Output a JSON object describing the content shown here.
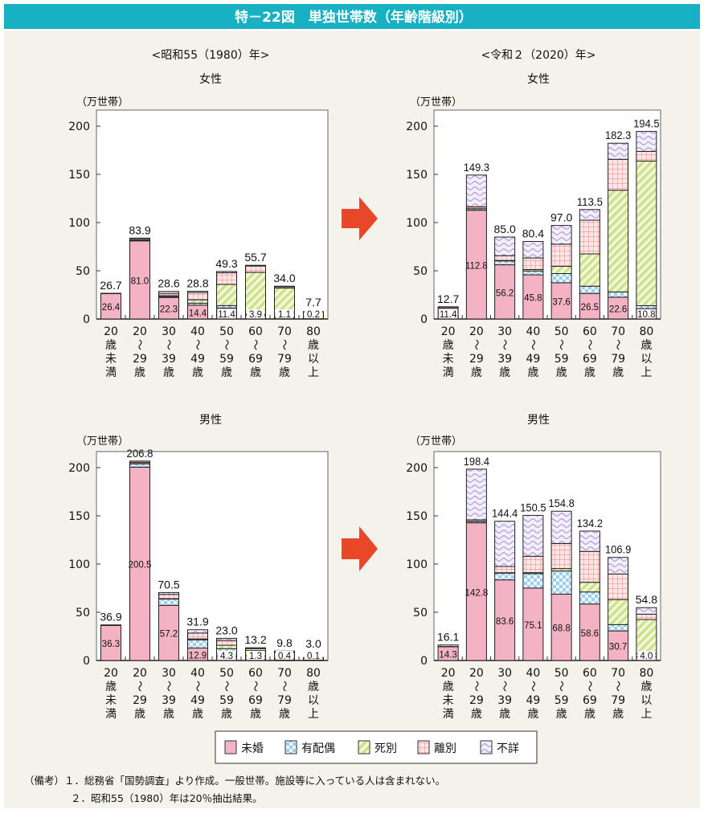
{
  "title": "特－22図　単独世帯数（年齢階級別）",
  "colors": {
    "title_bar": "#17b1c3",
    "background": "#f4f2eb",
    "arrow": "#e8472a",
    "未婚": "#f4b3c5",
    "有配偶": "#a9d6ef",
    "死別": "#d6e79a",
    "離別": "#f5a6a6",
    "不詳": "#c9b8e6"
  },
  "headers": {
    "left": "<昭和55（1980）年>",
    "right": "<令和２（2020）年>",
    "female": "女性",
    "male": "男性"
  },
  "legend": [
    {
      "label": "未婚",
      "icon": "solid-pink"
    },
    {
      "label": "有配偶",
      "icon": "checker-blue"
    },
    {
      "label": "死別",
      "icon": "stripe-green"
    },
    {
      "label": "離別",
      "icon": "grid-pink"
    },
    {
      "label": "不詳",
      "icon": "wave-lavender"
    }
  ],
  "notes": [
    "（備考）１．総務省「国勢調査」より作成。一般世帯。施設等に入っている人は含まれない。",
    "２．昭和55（1980）年は20％抽出結果。"
  ],
  "chart_data": [
    {
      "type": "bar",
      "stacked": true,
      "period": "<昭和55（1980）年>",
      "sex": "女性",
      "ylabel": "（万世帯）",
      "ylim": [
        0,
        200
      ],
      "yticks": [
        0,
        50,
        100,
        150,
        200
      ],
      "grid": false,
      "categories": [
        [
          "20",
          "歳",
          "未",
          "満"
        ],
        [
          "20",
          "～",
          "29",
          "歳"
        ],
        [
          "30",
          "～",
          "39",
          "歳"
        ],
        [
          "40",
          "～",
          "49",
          "歳"
        ],
        [
          "50",
          "～",
          "59",
          "歳"
        ],
        [
          "60",
          "～",
          "69",
          "歳"
        ],
        [
          "70",
          "～",
          "79",
          "歳"
        ],
        [
          "80",
          "歳",
          "以",
          "上"
        ]
      ],
      "totals": [
        26.7,
        83.9,
        28.6,
        28.8,
        49.3,
        55.7,
        34.0,
        7.7
      ],
      "series": [
        {
          "name": "未婚",
          "values": [
            26.4,
            81.0,
            22.3,
            14.4,
            11.4,
            3.9,
            1.1,
            0.2
          ]
        },
        {
          "name": "有配偶",
          "values": [
            0.1,
            0.9,
            1.0,
            2.0,
            2.5,
            1.0,
            0.5,
            0.1
          ]
        },
        {
          "name": "死別",
          "values": [
            0.0,
            0.1,
            0.8,
            3.5,
            22.0,
            43.5,
            30.5,
            7.0
          ]
        },
        {
          "name": "離別",
          "values": [
            0.1,
            1.3,
            2.5,
            7.5,
            12.0,
            6.5,
            1.3,
            0.2
          ]
        },
        {
          "name": "不詳",
          "values": [
            0.1,
            0.6,
            2.0,
            1.4,
            1.4,
            0.8,
            0.6,
            0.2
          ]
        }
      ]
    },
    {
      "type": "bar",
      "stacked": true,
      "period": "<令和２（2020）年>",
      "sex": "女性",
      "ylabel": "（万世帯）",
      "ylim": [
        0,
        200
      ],
      "yticks": [
        0,
        50,
        100,
        150,
        200
      ],
      "grid": false,
      "categories": [
        [
          "20",
          "歳",
          "未",
          "満"
        ],
        [
          "20",
          "～",
          "29",
          "歳"
        ],
        [
          "30",
          "～",
          "39",
          "歳"
        ],
        [
          "40",
          "～",
          "49",
          "歳"
        ],
        [
          "50",
          "～",
          "59",
          "歳"
        ],
        [
          "60",
          "～",
          "69",
          "歳"
        ],
        [
          "70",
          "～",
          "79",
          "歳"
        ],
        [
          "80",
          "歳",
          "以",
          "上"
        ]
      ],
      "totals": [
        12.7,
        149.3,
        85.0,
        80.4,
        97.0,
        113.5,
        182.3,
        194.5
      ],
      "series": [
        {
          "name": "未婚",
          "values": [
            11.4,
            112.8,
            56.2,
            45.8,
            37.6,
            26.5,
            22.6,
            10.8
          ]
        },
        {
          "name": "有配偶",
          "values": [
            0.1,
            1.5,
            4.0,
            4.0,
            9.5,
            7.5,
            5.5,
            3.0
          ]
        },
        {
          "name": "死別",
          "values": [
            0.0,
            0.1,
            0.5,
            1.5,
            7.5,
            33.5,
            105.5,
            150.0
          ]
        },
        {
          "name": "離別",
          "values": [
            0.1,
            2.0,
            5.0,
            12.0,
            23.0,
            35.0,
            32.0,
            10.0
          ]
        },
        {
          "name": "不詳",
          "values": [
            1.1,
            32.9,
            19.3,
            17.1,
            19.4,
            11.0,
            16.7,
            20.7
          ]
        }
      ]
    },
    {
      "type": "bar",
      "stacked": true,
      "period": "<昭和55（1980）年>",
      "sex": "男性",
      "ylabel": "（万世帯）",
      "ylim": [
        0,
        200
      ],
      "yticks": [
        0,
        50,
        100,
        150,
        200
      ],
      "grid": false,
      "categories": [
        [
          "20",
          "歳",
          "未",
          "満"
        ],
        [
          "20",
          "～",
          "29",
          "歳"
        ],
        [
          "30",
          "～",
          "39",
          "歳"
        ],
        [
          "40",
          "～",
          "49",
          "歳"
        ],
        [
          "50",
          "～",
          "59",
          "歳"
        ],
        [
          "60",
          "～",
          "69",
          "歳"
        ],
        [
          "70",
          "～",
          "79",
          "歳"
        ],
        [
          "80",
          "歳",
          "以",
          "上"
        ]
      ],
      "totals": [
        36.9,
        206.8,
        70.5,
        31.9,
        23.0,
        13.2,
        9.8,
        3.0
      ],
      "series": [
        {
          "name": "未婚",
          "values": [
            36.3,
            200.5,
            57.2,
            12.9,
            4.3,
            1.3,
            0.4,
            0.1
          ]
        },
        {
          "name": "有配偶",
          "values": [
            0.2,
            3.5,
            6.5,
            8.5,
            8.0,
            3.5,
            1.5,
            0.3
          ]
        },
        {
          "name": "死別",
          "values": [
            0.0,
            0.1,
            0.3,
            1.0,
            3.5,
            5.5,
            6.5,
            2.4
          ]
        },
        {
          "name": "離別",
          "values": [
            0.2,
            1.5,
            4.5,
            6.0,
            5.0,
            2.0,
            0.7,
            0.1
          ]
        },
        {
          "name": "不詳",
          "values": [
            0.2,
            1.2,
            2.0,
            3.5,
            2.2,
            0.9,
            0.7,
            0.1
          ]
        }
      ]
    },
    {
      "type": "bar",
      "stacked": true,
      "period": "<令和２（2020）年>",
      "sex": "男性",
      "ylabel": "（万世帯）",
      "ylim": [
        0,
        200
      ],
      "yticks": [
        0,
        50,
        100,
        150,
        200
      ],
      "grid": false,
      "categories": [
        [
          "20",
          "歳",
          "未",
          "満"
        ],
        [
          "20",
          "～",
          "29",
          "歳"
        ],
        [
          "30",
          "～",
          "39",
          "歳"
        ],
        [
          "40",
          "～",
          "49",
          "歳"
        ],
        [
          "50",
          "～",
          "59",
          "歳"
        ],
        [
          "60",
          "～",
          "69",
          "歳"
        ],
        [
          "70",
          "～",
          "79",
          "歳"
        ],
        [
          "80",
          "歳",
          "以",
          "上"
        ]
      ],
      "totals": [
        16.1,
        198.4,
        144.4,
        150.5,
        154.8,
        134.2,
        106.9,
        54.8
      ],
      "series": [
        {
          "name": "未婚",
          "values": [
            14.3,
            142.8,
            83.6,
            75.1,
            68.8,
            58.6,
            30.7,
            4.0
          ]
        },
        {
          "name": "有配偶",
          "values": [
            0.1,
            1.5,
            7.0,
            15.0,
            24.0,
            12.5,
            6.5,
            3.0
          ]
        },
        {
          "name": "死別",
          "values": [
            0.0,
            0.1,
            0.4,
            1.0,
            2.5,
            10.0,
            26.0,
            35.5
          ]
        },
        {
          "name": "離別",
          "values": [
            0.1,
            1.5,
            6.5,
            17.0,
            26.0,
            32.0,
            26.5,
            5.5
          ]
        },
        {
          "name": "不詳",
          "values": [
            1.6,
            52.5,
            46.9,
            42.4,
            33.5,
            21.1,
            17.2,
            6.8
          ]
        }
      ]
    }
  ]
}
